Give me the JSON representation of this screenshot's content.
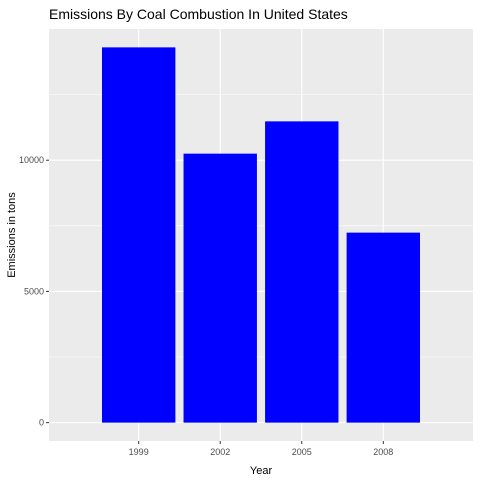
{
  "chart_data": {
    "type": "bar",
    "title": "Emissions By Coal Combustion In United States",
    "xlabel": "Year",
    "ylabel": "Emissions in tons",
    "categories": [
      "1999",
      "2002",
      "2005",
      "2008"
    ],
    "values": [
      14300,
      10250,
      11480,
      7240
    ],
    "ylim": [
      -700,
      15000
    ],
    "yticks": [
      0,
      5000,
      10000
    ],
    "ytick_labels": [
      "0",
      "5000",
      "10000"
    ],
    "grid": true,
    "bar_color": "#0000ff",
    "panel_background": "#ebebeb",
    "grid_color": "#ffffff"
  }
}
